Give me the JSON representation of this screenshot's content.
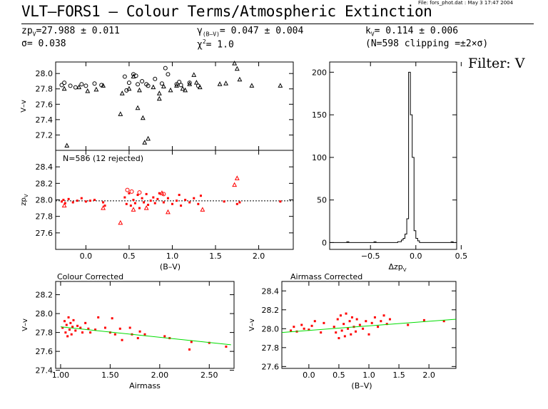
{
  "header": {
    "file_info": "File: fors_phot.dat : May  3 17:47 2004",
    "title": "VLT–FORS1 – Colour Terms/Atmospheric Extinction",
    "zp_label": "zp",
    "zp_sub": "V",
    "zp_value": "=27.988 ± 0.011",
    "sigma_text": "σ=  0.038",
    "gamma_label": "γ",
    "gamma_sub": "(B–V)",
    "gamma_value": "=  0.047 ± 0.004",
    "chi_label": "χ",
    "chi_sup": "2",
    "chi_value": "=   1.0",
    "k_label": "k",
    "k_sub": "V",
    "k_value": "=  0.114 ± 0.006",
    "clip_text": "(N=598 clipping =±2×σ)",
    "filter_label": "Filter: V"
  },
  "colors": {
    "points_black": "#000000",
    "points_red": "#ff0000",
    "fit_line": "#00dd00"
  },
  "chart_data": [
    {
      "id": "top-v-minus-v",
      "type": "scatter",
      "ylabel": "V–v",
      "xlim": [
        -0.35,
        2.4
      ],
      "ylim": [
        27.0,
        28.15
      ],
      "yticks": [
        27.2,
        27.4,
        27.6,
        27.8,
        28.0
      ],
      "series": [
        {
          "marker": "circle",
          "color": "#000000",
          "x": [
            -0.28,
            -0.25,
            -0.18,
            -0.12,
            -0.05,
            0.0,
            0.1,
            0.18,
            0.45,
            0.5,
            0.55,
            0.6,
            0.65,
            0.72,
            0.8,
            0.88,
            0.95,
            1.05,
            1.1,
            1.2,
            1.3,
            0.47,
            0.58,
            0.7,
            0.92,
            1.08
          ],
          "y": [
            27.85,
            27.88,
            27.84,
            27.82,
            27.86,
            27.84,
            27.87,
            27.85,
            27.96,
            27.88,
            27.99,
            27.86,
            27.9,
            27.84,
            27.93,
            27.87,
            27.99,
            27.86,
            27.85,
            27.88,
            27.84,
            27.78,
            27.97,
            27.86,
            28.07,
            27.89
          ]
        },
        {
          "marker": "triangle",
          "color": "#000000",
          "x": [
            -0.25,
            -0.22,
            -0.08,
            0.02,
            0.12,
            0.2,
            0.42,
            0.5,
            0.55,
            0.62,
            0.68,
            0.72,
            0.78,
            0.85,
            0.9,
            0.98,
            1.05,
            1.12,
            1.2,
            1.28,
            1.32,
            1.55,
            1.62,
            1.72,
            1.75,
            1.78,
            1.92,
            2.25,
            0.4,
            0.6,
            0.66,
            0.85,
            1.15,
            1.25
          ],
          "y": [
            27.8,
            27.06,
            27.82,
            27.77,
            27.79,
            27.84,
            27.74,
            27.8,
            27.96,
            27.78,
            27.1,
            27.15,
            27.82,
            27.74,
            27.83,
            27.78,
            27.84,
            27.8,
            27.86,
            27.88,
            27.82,
            27.86,
            27.87,
            28.13,
            28.06,
            27.92,
            27.84,
            27.84,
            27.47,
            27.55,
            27.42,
            27.67,
            27.78,
            27.98
          ]
        }
      ]
    },
    {
      "id": "middle-zp",
      "type": "scatter",
      "ylabel": "zp",
      "ylabel_sub": "V",
      "xlabel": "(B–V)",
      "annotation": "N=586 (12 rejected)",
      "xlim": [
        -0.35,
        2.4
      ],
      "ylim": [
        27.4,
        28.6
      ],
      "xticks": [
        0.0,
        0.5,
        1.0,
        1.5,
        2.0
      ],
      "yticks": [
        27.6,
        27.8,
        28.0,
        28.2,
        28.4
      ],
      "zp_line": 27.988,
      "series": [
        {
          "marker": "dot",
          "color": "#ff0000",
          "x": [
            -0.28,
            -0.26,
            -0.24,
            -0.2,
            -0.15,
            -0.1,
            -0.05,
            0.0,
            0.05,
            0.1,
            0.2,
            0.22,
            0.45,
            0.47,
            0.5,
            0.52,
            0.55,
            0.57,
            0.6,
            0.62,
            0.65,
            0.67,
            0.7,
            0.72,
            0.75,
            0.78,
            0.8,
            0.83,
            0.85,
            0.9,
            0.95,
            1.0,
            1.05,
            1.08,
            1.1,
            1.15,
            1.2,
            1.25,
            1.3,
            1.33,
            1.6,
            1.75,
            1.78,
            2.25
          ],
          "y": [
            27.98,
            28.0,
            27.96,
            28.01,
            27.97,
            27.99,
            28.02,
            27.98,
            27.99,
            28.0,
            27.97,
            27.93,
            28.03,
            27.95,
            28.08,
            27.93,
            28.0,
            27.96,
            28.06,
            27.9,
            28.02,
            27.97,
            28.07,
            27.94,
            27.99,
            28.03,
            27.96,
            28.01,
            28.08,
            27.97,
            28.02,
            27.95,
            27.99,
            28.06,
            27.93,
            28.0,
            27.97,
            28.02,
            27.95,
            28.05,
            27.98,
            27.95,
            27.97,
            27.98
          ]
        },
        {
          "marker": "triangle",
          "color": "#ff0000",
          "x": [
            -0.25,
            0.2,
            0.4,
            0.55,
            0.7,
            0.88,
            0.95,
            1.35,
            1.72,
            1.75
          ],
          "y": [
            27.93,
            27.9,
            27.72,
            27.88,
            27.9,
            28.08,
            27.85,
            27.88,
            28.18,
            28.26
          ]
        },
        {
          "marker": "circle",
          "color": "#ff0000",
          "x": [
            0.48,
            0.53,
            0.62,
            0.9
          ],
          "y": [
            28.12,
            28.1,
            28.09,
            28.07
          ]
        }
      ]
    },
    {
      "id": "histogram",
      "type": "bar",
      "xlabel": "Δzp",
      "xlabel_sub": "V",
      "xlim": [
        -0.95,
        0.45
      ],
      "ylim": [
        -8,
        212
      ],
      "xticks": [
        -0.5,
        0.0,
        0.5
      ],
      "yticks": [
        0,
        50,
        100,
        150,
        200
      ],
      "bin_width": 0.02,
      "bin_edges_start": -0.2,
      "counts": [
        1,
        1,
        3,
        5,
        10,
        28,
        200,
        150,
        100,
        14,
        5,
        2
      ],
      "outliers_x": [
        -0.75,
        -0.45,
        0.4
      ],
      "outliers_count": [
        1,
        1,
        1
      ]
    },
    {
      "id": "colour-corrected",
      "type": "scatter",
      "title": "Colour Corrected",
      "ylabel": "V–v",
      "xlabel": "Airmass",
      "xlim": [
        0.95,
        2.75
      ],
      "ylim": [
        27.42,
        28.34
      ],
      "xticks": [
        1.0,
        1.5,
        2.0,
        2.5
      ],
      "yticks": [
        27.4,
        27.6,
        27.8,
        28.0,
        28.2
      ],
      "fit_line": {
        "x": [
          1.0,
          2.72
        ],
        "y": [
          27.86,
          27.67
        ]
      },
      "series": [
        {
          "marker": "dot",
          "color": "#ff0000",
          "x": [
            1.02,
            1.04,
            1.05,
            1.06,
            1.07,
            1.08,
            1.09,
            1.1,
            1.11,
            1.12,
            1.13,
            1.15,
            1.17,
            1.2,
            1.22,
            1.25,
            1.28,
            1.3,
            1.35,
            1.38,
            1.45,
            1.5,
            1.52,
            1.55,
            1.6,
            1.62,
            1.7,
            1.72,
            1.78,
            1.8,
            1.85,
            2.05,
            2.1,
            2.3,
            2.32,
            2.5,
            2.67
          ],
          "y": [
            27.85,
            27.92,
            27.8,
            27.88,
            27.76,
            27.96,
            27.83,
            27.9,
            27.78,
            27.86,
            27.93,
            27.82,
            27.87,
            27.85,
            27.8,
            27.9,
            27.84,
            27.8,
            27.83,
            27.96,
            27.85,
            27.8,
            27.95,
            27.78,
            27.84,
            27.72,
            27.85,
            27.78,
            27.74,
            27.81,
            27.78,
            27.76,
            27.74,
            27.62,
            27.7,
            27.69,
            27.65
          ]
        }
      ]
    },
    {
      "id": "airmass-corrected",
      "type": "scatter",
      "title": "Airmass Corrected",
      "ylabel": "V–v",
      "xlabel": "(B–V)",
      "xlim": [
        -0.45,
        2.45
      ],
      "ylim": [
        27.58,
        28.5
      ],
      "xticks": [
        0.0,
        0.5,
        1.0,
        1.5,
        2.0
      ],
      "yticks": [
        27.6,
        27.8,
        28.0,
        28.2,
        28.4
      ],
      "fit_line": {
        "x": [
          -0.45,
          2.45
        ],
        "y": [
          27.96,
          28.1
        ]
      },
      "series": [
        {
          "marker": "dot",
          "color": "#ff0000",
          "x": [
            -0.3,
            -0.25,
            -0.2,
            -0.12,
            -0.08,
            0.0,
            0.05,
            0.1,
            0.2,
            0.25,
            0.42,
            0.45,
            0.48,
            0.5,
            0.53,
            0.55,
            0.58,
            0.6,
            0.62,
            0.65,
            0.68,
            0.7,
            0.72,
            0.75,
            0.78,
            0.8,
            0.85,
            0.9,
            0.95,
            1.0,
            1.05,
            1.1,
            1.15,
            1.2,
            1.25,
            1.3,
            1.35,
            1.65,
            1.92,
            2.25
          ],
          "y": [
            27.98,
            28.02,
            27.97,
            28.04,
            28.0,
            27.99,
            28.03,
            28.08,
            27.96,
            28.06,
            28.02,
            27.96,
            28.1,
            27.9,
            28.14,
            27.98,
            28.05,
            27.92,
            28.16,
            28.0,
            28.08,
            27.94,
            28.12,
            28.02,
            27.97,
            28.1,
            28.04,
            28.0,
            28.08,
            27.94,
            28.06,
            28.12,
            28.02,
            28.08,
            28.14,
            28.05,
            28.1,
            28.04,
            28.09,
            28.08
          ]
        }
      ]
    }
  ]
}
